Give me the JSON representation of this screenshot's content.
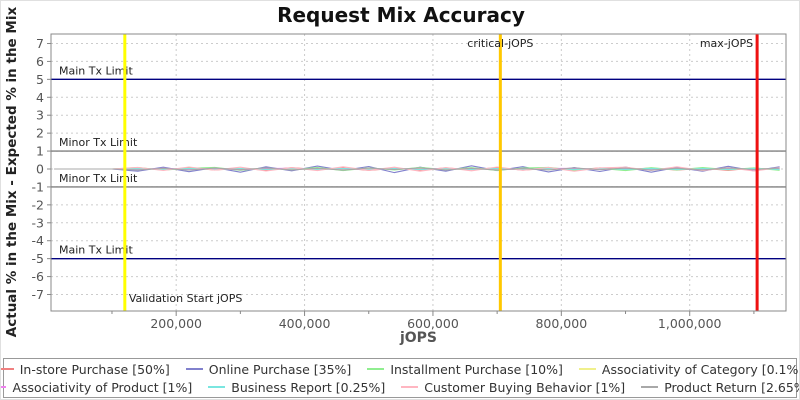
{
  "chart_data": {
    "type": "line",
    "title": "Request Mix Accuracy",
    "xlabel": "jOPS",
    "ylabel": "Actual % in the Mix - Expected % in the Mix",
    "xlim": [
      5000,
      1150000
    ],
    "ylim": [
      -7.7,
      7.55
    ],
    "grid": "dashed",
    "legend_position": "bottom",
    "x_ticks": [
      200000,
      400000,
      600000,
      800000,
      1000000
    ],
    "x_tick_labels": [
      "200,000",
      "400,000",
      "600,000",
      "800,000",
      "1,000,000"
    ],
    "x_minor_ticks": [
      100000,
      300000,
      500000,
      700000,
      900000,
      1100000
    ],
    "y_ticks": [
      -7,
      -6,
      -5,
      -4,
      -3,
      -2,
      -1,
      0,
      1,
      2,
      3,
      4,
      5,
      6,
      7
    ],
    "y_tick_labels": [
      "-7",
      "-6",
      "-5",
      "-4",
      "-3",
      "-2",
      "-1",
      "0",
      "1",
      "2",
      "3",
      "4",
      "5",
      "6",
      "7"
    ],
    "x": [
      10000,
      55000,
      100000,
      140000,
      180000,
      220000,
      260000,
      300000,
      340000,
      380000,
      420000,
      460000,
      500000,
      540000,
      580000,
      620000,
      660000,
      700000,
      740000,
      780000,
      820000,
      860000,
      900000,
      940000,
      980000,
      1020000,
      1060000,
      1100000,
      1140000
    ],
    "series": [
      {
        "name": "In-store Purchase [50%]",
        "color": "#f08080",
        "values": [
          0,
          0,
          0,
          0.05,
          -0.04,
          0.06,
          -0.05,
          0.03,
          -0.06,
          0.07,
          -0.03,
          0.05,
          -0.07,
          0.04,
          -0.05,
          0.06,
          -0.04,
          0.07,
          -0.06,
          0.03,
          -0.05,
          0.06,
          -0.03,
          0.05,
          -0.06,
          0.04,
          -0.07,
          0.05,
          -0.04
        ]
      },
      {
        "name": "Online Purchase [35%]",
        "color": "#8181cd",
        "values": [
          0,
          0,
          0,
          -0.12,
          0.1,
          -0.15,
          0.08,
          -0.18,
          0.12,
          -0.1,
          0.16,
          -0.08,
          0.14,
          -0.2,
          0.1,
          -0.12,
          0.18,
          -0.09,
          0.13,
          -0.16,
          0.08,
          -0.14,
          0.11,
          -0.18,
          0.09,
          -0.12,
          0.15,
          -0.1,
          0.12
        ]
      },
      {
        "name": "Installment Purchase [10%]",
        "color": "#90ee90",
        "values": [
          0,
          0,
          0,
          0.08,
          -0.06,
          0.04,
          0.09,
          -0.07,
          0.05,
          -0.04,
          0.08,
          -0.09,
          0.06,
          -0.05,
          0.09,
          -0.04,
          0.07,
          -0.08,
          0.05,
          0.09,
          -0.06,
          0.04,
          -0.09,
          0.07,
          -0.05,
          0.08,
          -0.04,
          0.06,
          -0.07
        ]
      },
      {
        "name": "Associativity of Category [0.1%]",
        "color": "#f0f08c",
        "values": [
          0,
          0,
          0,
          0.01,
          -0.01,
          0.01,
          0,
          -0.01,
          0.01,
          -0.01,
          0,
          0.01,
          -0.01,
          0.01,
          0,
          -0.01,
          0.01,
          0,
          -0.01,
          0.01,
          -0.01,
          0,
          0.01,
          -0.01,
          0,
          0.01,
          -0.01,
          0.01,
          0
        ]
      },
      {
        "name": "Associativity of Product [1%]",
        "color": "#ee82ee",
        "values": [
          0,
          0,
          0,
          -0.03,
          0.04,
          -0.02,
          0.03,
          -0.04,
          0.02,
          0.04,
          -0.03,
          0.02,
          -0.04,
          0.03,
          -0.02,
          0.04,
          -0.03,
          0.02,
          -0.04,
          0.03,
          0.04,
          -0.02,
          0.03,
          -0.04,
          0.02,
          -0.03,
          0.04,
          -0.02,
          0.03
        ]
      },
      {
        "name": "Business Report [0.25%]",
        "color": "#7ae6e0",
        "values": [
          0,
          0,
          0,
          0.02,
          -0.02,
          0.03,
          -0.02,
          0.02,
          -0.03,
          0.02,
          -0.02,
          0.03,
          -0.02,
          0.02,
          -0.03,
          0.02,
          -0.02,
          0.03,
          -0.02,
          0.02,
          -0.03,
          0.03,
          -0.02,
          0.02,
          -0.03,
          0.02,
          -0.02,
          0.03,
          -0.02
        ]
      },
      {
        "name": "Customer Buying Behavior [1%]",
        "color": "#ffb6c1",
        "values": [
          0,
          0,
          0,
          0.09,
          -0.08,
          0.11,
          -0.06,
          0.1,
          -0.11,
          0.07,
          -0.09,
          0.12,
          -0.07,
          0.1,
          -0.12,
          0.08,
          -0.1,
          0.11,
          -0.07,
          0.09,
          -0.12,
          0.06,
          0.1,
          -0.08,
          0.12,
          -0.09,
          0.07,
          -0.11,
          0.08
        ]
      },
      {
        "name": "Product Return [2.65%]",
        "color": "#a8a8a8",
        "values": [
          0,
          0,
          0,
          -0.05,
          0.04,
          -0.06,
          0.05,
          -0.04,
          0.06,
          -0.05,
          0.04,
          -0.06,
          0.05,
          -0.03,
          0.06,
          -0.05,
          0.04,
          -0.06,
          0.03,
          -0.05,
          0.06,
          -0.04,
          0.05,
          -0.06,
          0.04,
          -0.05,
          0.06,
          -0.03,
          0.05
        ]
      }
    ],
    "legend_rows": [
      [
        0,
        1,
        2,
        3
      ],
      [
        4,
        5,
        6,
        7
      ]
    ],
    "reference_lines": {
      "horizontal": [
        {
          "label": "Main Tx Limit",
          "y": 5,
          "color": "#000080"
        },
        {
          "label": "Minor Tx Limit",
          "y": 1,
          "color": "#808080"
        },
        {
          "label": "Minor Tx Limit",
          "y": -1,
          "color": "#808080"
        },
        {
          "label": "Main Tx Limit",
          "y": -5,
          "color": "#000080"
        }
      ],
      "vertical": [
        {
          "label": "Validation Start jOPS",
          "x": 120000,
          "color": "#ffff00",
          "label_pos": "bottom-right"
        },
        {
          "label": "critical-jOPS",
          "x": 705000,
          "color": "#ffc800",
          "label_pos": "top-center"
        },
        {
          "label": "max-jOPS",
          "x": 1105000,
          "color": "#ee1111",
          "label_pos": "top-left"
        }
      ]
    },
    "colors": {
      "grid": "#cccccc",
      "plot_border": "#888888",
      "tick_label": "#555555",
      "annotation": "#222222"
    }
  }
}
